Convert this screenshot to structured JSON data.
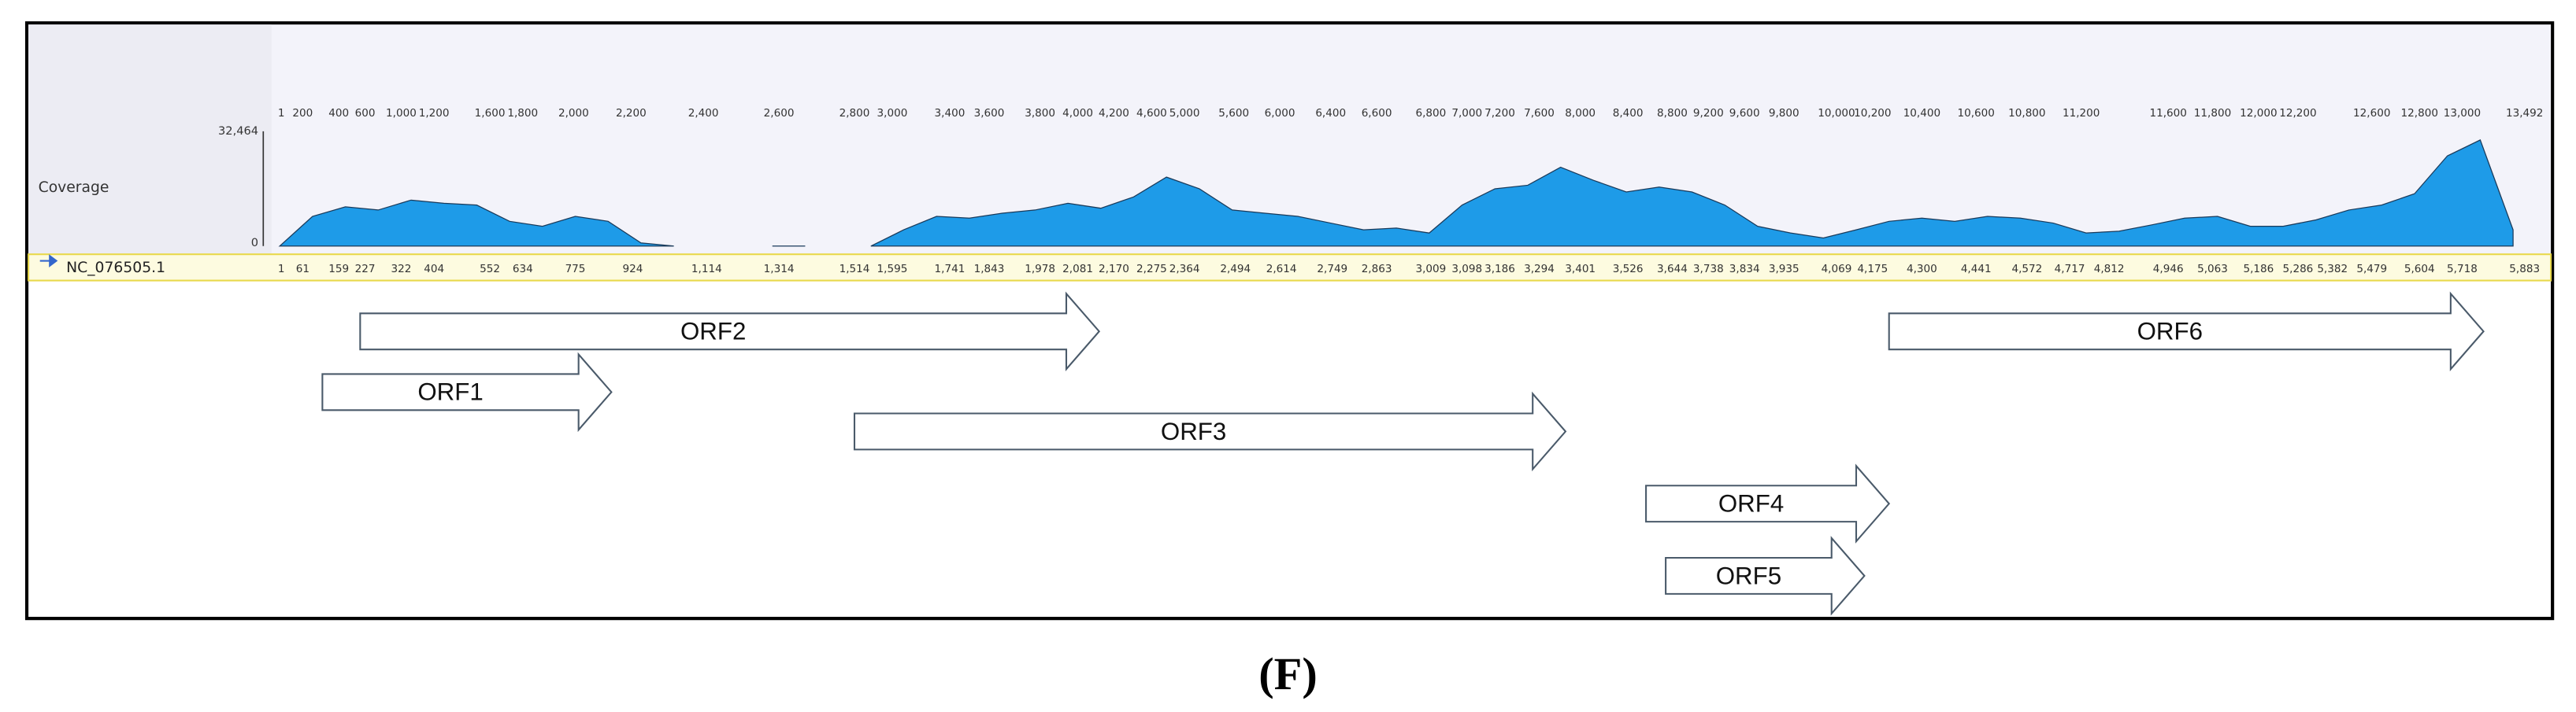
{
  "track_label": "Coverage",
  "coverage": {
    "max_label": "32,464",
    "min_label": "0",
    "ylim": [
      0,
      32464
    ],
    "values": [
      0,
      8400,
      11100,
      10200,
      13000,
      12100,
      11600,
      7000,
      5600,
      8400,
      7000,
      900,
      0,
      null,
      null,
      0,
      0,
      null,
      0,
      4600,
      8400,
      7900,
      9300,
      10200,
      12100,
      10700,
      13900,
      19500,
      16200,
      10200,
      9300,
      8400,
      6500,
      4600,
      5100,
      3700,
      11600,
      16200,
      17200,
      22300,
      18600,
      15300,
      16700,
      15300,
      11600,
      5600,
      3700,
      2300,
      4600,
      7000,
      7900,
      7000,
      8400,
      7900,
      6500,
      3700,
      4200,
      6000,
      7900,
      8400,
      5600,
      5600,
      7400,
      10200,
      11600,
      14800,
      25500,
      30000,
      4600
    ]
  },
  "sequence_name": "NC_076505.1",
  "top_ruler": [
    "1",
    "200",
    "400",
    "600",
    "1,000",
    "1,200",
    "1,600",
    "1,800",
    "2,000",
    "2,200",
    "2,400",
    "2,600",
    "2,800",
    "3,000",
    "3,400",
    "3,600",
    "3,800",
    "4,000",
    "4,200",
    "4,600",
    "5,000",
    "5,600",
    "6,000",
    "6,400",
    "6,600",
    "6,800",
    "7,000",
    "7,200",
    "7,600",
    "8,000",
    "8,400",
    "8,800",
    "9,200",
    "9,600",
    "9,800",
    "10,000",
    "10,200",
    "10,400",
    "10,600",
    "10,800",
    "11,200",
    "11,600",
    "11,800",
    "12,000",
    "12,200",
    "12,600",
    "12,800",
    "13,000",
    "13,492"
  ],
  "bottom_ruler": [
    "1",
    "61",
    "159",
    "227",
    "322",
    "404",
    "552",
    "634",
    "775",
    "924",
    "1,114",
    "1,314",
    "1,514",
    "1,595",
    "1,741",
    "1,843",
    "1,978",
    "2,081",
    "2,170",
    "2,275",
    "2,364",
    "2,494",
    "2,614",
    "2,749",
    "2,863",
    "3,009",
    "3,098",
    "3,186",
    "3,294",
    "3,401",
    "3,526",
    "3,644",
    "3,738",
    "3,834",
    "3,935",
    "4,069",
    "4,175",
    "4,300",
    "4,441",
    "4,572",
    "4,717",
    "4,812",
    "4,946",
    "5,063",
    "5,186",
    "5,286",
    "5,382",
    "5,479",
    "5,604",
    "5,718",
    "5,883"
  ],
  "orfs": [
    "ORF1",
    "ORF2",
    "ORF3",
    "ORF4",
    "ORF5",
    "ORF6"
  ],
  "panel_label": "(F)"
}
